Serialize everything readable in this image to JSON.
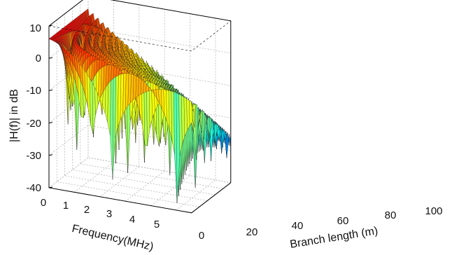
{
  "chart_data": {
    "type": "surface",
    "title": "",
    "xlabel": "Branch length (m)",
    "ylabel": "Frequency(MHz)",
    "zlabel": "|H(f)| in dB",
    "xlim": [
      0,
      100
    ],
    "ylim": [
      0,
      5.6
    ],
    "zlim": [
      -40,
      10
    ],
    "x_ticks": [
      "0",
      "20",
      "40",
      "60",
      "80",
      "100"
    ],
    "y_ticks": [
      "0",
      "1",
      "2",
      "3",
      "4",
      "5"
    ],
    "z_ticks": [
      "10",
      "0",
      "-10",
      "-20",
      "-30",
      "-40"
    ],
    "grid": true,
    "box": true,
    "colormap": "jet",
    "surface_profile": {
      "peak_db": 6,
      "far_corner_db": -27,
      "deepest_notch_db": -40,
      "branch_length_range": [
        0,
        100
      ],
      "frequency_range": [
        0,
        5.6
      ]
    }
  }
}
